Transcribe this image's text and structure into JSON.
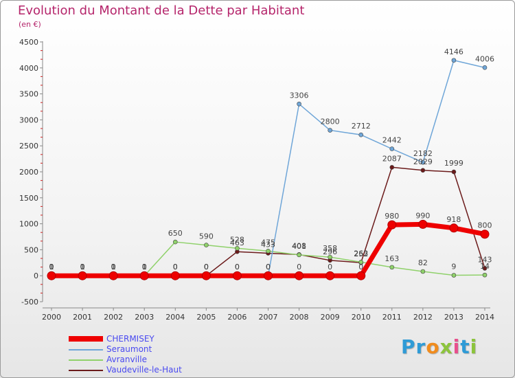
{
  "title": "Evolution du Montant de la Dette par Habitant",
  "subtitle": "(en €)",
  "logo": "Proxiti",
  "chart_data": {
    "type": "line",
    "title": "Evolution du Montant de la Dette par Habitant",
    "subtitle": "(en €)",
    "xlabel": "",
    "ylabel": "",
    "x": [
      "2000",
      "2001",
      "2002",
      "2003",
      "2004",
      "2005",
      "2006",
      "2007",
      "2008",
      "2009",
      "2010",
      "2011",
      "2012",
      "2013",
      "2014"
    ],
    "ylim": [
      -500,
      4500
    ],
    "yticks": [
      -500,
      0,
      500,
      1000,
      1500,
      2000,
      2500,
      3000,
      3500,
      4000,
      4500
    ],
    "grid": false,
    "legend": "bottom-left",
    "series": [
      {
        "name": "Vaudeville-le-Haut",
        "color": "#6b1a1a",
        "values": [
          0,
          0,
          0,
          0,
          0,
          0,
          463,
          433,
          408,
          296,
          252,
          2087,
          2029,
          1999,
          143
        ],
        "labels": [
          "0",
          "0",
          "0",
          "0",
          "0",
          "0",
          "463",
          "433",
          "408",
          "296",
          "252",
          "2087",
          "2029",
          "1999",
          "143"
        ]
      },
      {
        "name": "Avranville",
        "color": "#8fd16a",
        "values": [
          0,
          0,
          0,
          0,
          650,
          590,
          528,
          475,
          401,
          358,
          263,
          163,
          82,
          9,
          14
        ],
        "labels": [
          "0",
          "0",
          "0",
          "0",
          "650",
          "590",
          "528",
          "475",
          "401",
          "358",
          "263",
          "163",
          "82",
          "9",
          "14"
        ]
      },
      {
        "name": "Seraumont",
        "color": "#6fa6d8",
        "values": [
          1,
          1,
          1,
          1,
          0,
          0,
          0,
          0,
          3306,
          2800,
          2712,
          2442,
          2182,
          4146,
          4006
        ],
        "labels": [
          "1",
          "1",
          "1",
          "1",
          "0",
          "0",
          "0",
          "0",
          "3306",
          "2800",
          "2712",
          "2442",
          "2182",
          "4146",
          "4006"
        ]
      },
      {
        "name": "CHERMISEY",
        "color": "#ee0000",
        "values": [
          0,
          0,
          0,
          0,
          0,
          0,
          0,
          0,
          0,
          0,
          0,
          980,
          990,
          918,
          800
        ],
        "labels": [
          "0",
          "0",
          "0",
          "0",
          "0",
          "0",
          "0",
          "0",
          "0",
          "0",
          "0",
          "980",
          "990",
          "918",
          "800"
        ]
      }
    ]
  },
  "legend_items": [
    {
      "name": "CHERMISEY",
      "color": "#ee0000"
    },
    {
      "name": "Seraumont",
      "color": "#6fa6d8"
    },
    {
      "name": "Avranville",
      "color": "#8fd16a"
    },
    {
      "name": "Vaudeville-le-Haut",
      "color": "#6b1a1a"
    }
  ]
}
